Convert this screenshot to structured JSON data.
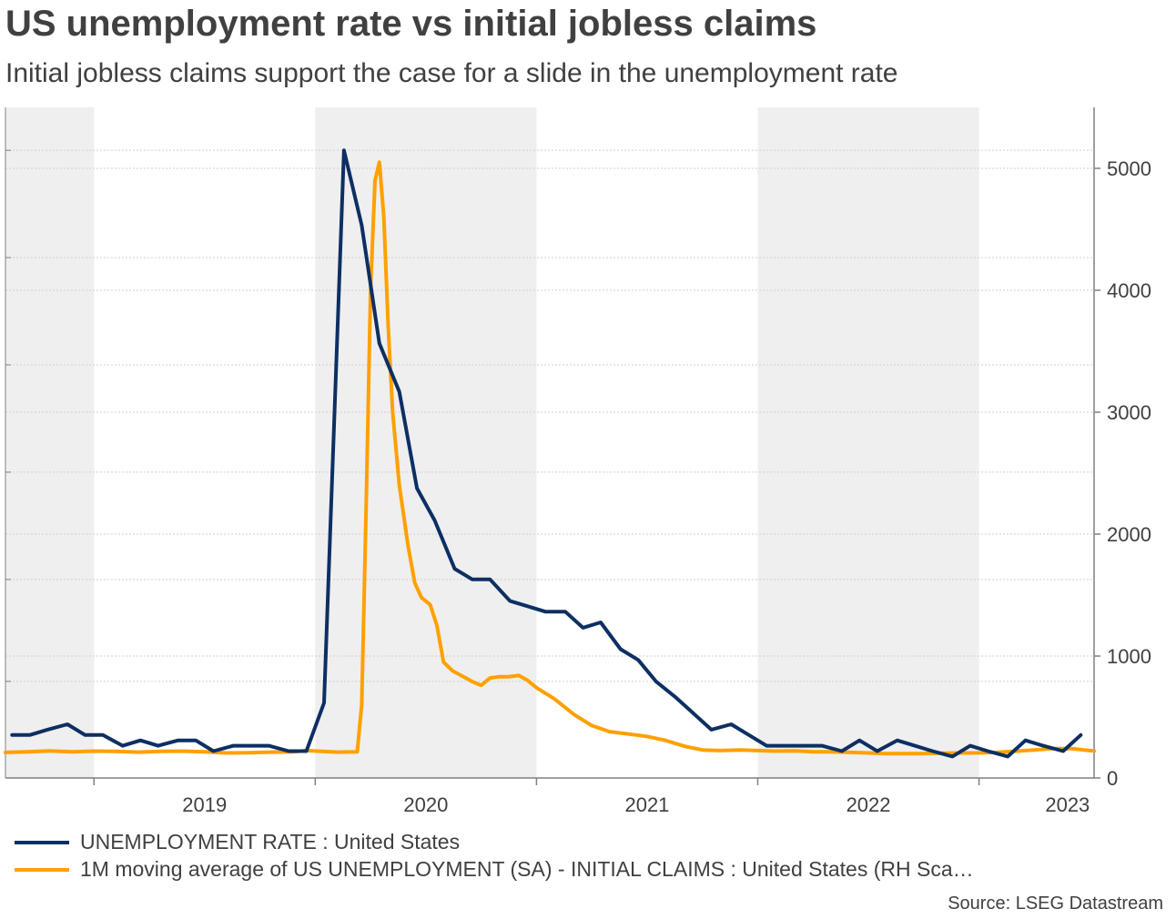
{
  "title": "US unemployment rate vs initial jobless claims",
  "subtitle": "Initial jobless claims support the case for a slide in the unemployment rate",
  "source": "Source: LSEG Datastream",
  "colors": {
    "unemployment": "#0d2f63",
    "claims": "#ffa000",
    "shade": "#efefef",
    "grid": "#cfcfcf",
    "axis": "#808080"
  },
  "chart_data": {
    "type": "line",
    "title": "US unemployment rate vs initial jobless claims",
    "xlabel": "",
    "ylabel_right": "",
    "x_range": [
      2018.6,
      2023.52
    ],
    "x_ticks": [
      {
        "label": "2019",
        "value": 2019.5
      },
      {
        "label": "2020",
        "value": 2020.5
      },
      {
        "label": "2021",
        "value": 2021.5
      },
      {
        "label": "2022",
        "value": 2022.5
      },
      {
        "label": "2023",
        "value": 2023.4
      }
    ],
    "year_boundaries": [
      2019,
      2020,
      2021,
      2022,
      2023
    ],
    "shaded_years": [
      [
        2018.6,
        2019
      ],
      [
        2020,
        2021
      ],
      [
        2022,
        2023
      ]
    ],
    "left_axis": {
      "ylim": [
        3.0,
        15.5
      ],
      "ticks": [],
      "grid": [
        4.8,
        6.7,
        8.7,
        10.7,
        12.7,
        14.7
      ]
    },
    "right_axis": {
      "ylim": [
        0,
        5500
      ],
      "ticks": [
        0,
        1000,
        2000,
        3000,
        4000,
        5000
      ],
      "tick_labels": [
        "0",
        "1000",
        "2000",
        "3000",
        "4000",
        "5000"
      ]
    },
    "series": [
      {
        "name": "UNEMPLOYMENT RATE : United States",
        "axis": "left",
        "values": [
          [
            2018.63,
            3.8
          ],
          [
            2018.71,
            3.8
          ],
          [
            2018.79,
            3.9
          ],
          [
            2018.88,
            4.0
          ],
          [
            2018.96,
            3.8
          ],
          [
            2019.04,
            3.8
          ],
          [
            2019.13,
            3.6
          ],
          [
            2019.21,
            3.7
          ],
          [
            2019.29,
            3.6
          ],
          [
            2019.38,
            3.7
          ],
          [
            2019.46,
            3.7
          ],
          [
            2019.54,
            3.5
          ],
          [
            2019.63,
            3.6
          ],
          [
            2019.71,
            3.6
          ],
          [
            2019.79,
            3.6
          ],
          [
            2019.88,
            3.5
          ],
          [
            2019.96,
            3.5
          ],
          [
            2020.04,
            4.4
          ],
          [
            2020.13,
            14.7
          ],
          [
            2020.21,
            13.3
          ],
          [
            2020.29,
            11.1
          ],
          [
            2020.38,
            10.2
          ],
          [
            2020.46,
            8.4
          ],
          [
            2020.54,
            7.8
          ],
          [
            2020.63,
            6.9
          ],
          [
            2020.71,
            6.7
          ],
          [
            2020.79,
            6.7
          ],
          [
            2020.88,
            6.3
          ],
          [
            2020.96,
            6.2
          ],
          [
            2021.04,
            6.1
          ],
          [
            2021.13,
            6.1
          ],
          [
            2021.21,
            5.8
          ],
          [
            2021.29,
            5.9
          ],
          [
            2021.38,
            5.4
          ],
          [
            2021.46,
            5.2
          ],
          [
            2021.54,
            4.8
          ],
          [
            2021.63,
            4.5
          ],
          [
            2021.71,
            4.2
          ],
          [
            2021.79,
            3.9
          ],
          [
            2021.88,
            4.0
          ],
          [
            2021.96,
            3.8
          ],
          [
            2022.04,
            3.6
          ],
          [
            2022.13,
            3.6
          ],
          [
            2022.21,
            3.6
          ],
          [
            2022.29,
            3.6
          ],
          [
            2022.38,
            3.5
          ],
          [
            2022.46,
            3.7
          ],
          [
            2022.54,
            3.5
          ],
          [
            2022.63,
            3.7
          ],
          [
            2022.71,
            3.6
          ],
          [
            2022.79,
            3.5
          ],
          [
            2022.88,
            3.4
          ],
          [
            2022.96,
            3.6
          ],
          [
            2023.04,
            3.5
          ],
          [
            2023.13,
            3.4
          ],
          [
            2023.21,
            3.7
          ],
          [
            2023.29,
            3.6
          ],
          [
            2023.38,
            3.5
          ],
          [
            2023.46,
            3.8
          ]
        ]
      },
      {
        "name": "1M moving average of US UNEMPLOYMENT (SA) - INITIAL CLAIMS : United States (RH Sca…",
        "axis": "right",
        "values": [
          [
            2018.6,
            210
          ],
          [
            2018.7,
            215
          ],
          [
            2018.8,
            222
          ],
          [
            2018.9,
            215
          ],
          [
            2019.0,
            220
          ],
          [
            2019.1,
            218
          ],
          [
            2019.2,
            212
          ],
          [
            2019.3,
            218
          ],
          [
            2019.4,
            220
          ],
          [
            2019.5,
            215
          ],
          [
            2019.6,
            205
          ],
          [
            2019.7,
            207
          ],
          [
            2019.8,
            212
          ],
          [
            2019.9,
            215
          ],
          [
            2019.96,
            225
          ],
          [
            2020.1,
            212
          ],
          [
            2020.19,
            215
          ],
          [
            2020.21,
            600
          ],
          [
            2020.23,
            2200
          ],
          [
            2020.25,
            4000
          ],
          [
            2020.27,
            4900
          ],
          [
            2020.29,
            5050
          ],
          [
            2020.31,
            4600
          ],
          [
            2020.33,
            3700
          ],
          [
            2020.35,
            3000
          ],
          [
            2020.38,
            2400
          ],
          [
            2020.42,
            1900
          ],
          [
            2020.45,
            1600
          ],
          [
            2020.48,
            1480
          ],
          [
            2020.52,
            1420
          ],
          [
            2020.55,
            1250
          ],
          [
            2020.58,
            950
          ],
          [
            2020.62,
            880
          ],
          [
            2020.67,
            830
          ],
          [
            2020.71,
            790
          ],
          [
            2020.75,
            760
          ],
          [
            2020.79,
            820
          ],
          [
            2020.83,
            830
          ],
          [
            2020.87,
            830
          ],
          [
            2020.92,
            840
          ],
          [
            2020.96,
            800
          ],
          [
            2021.0,
            740
          ],
          [
            2021.08,
            650
          ],
          [
            2021.17,
            520
          ],
          [
            2021.25,
            430
          ],
          [
            2021.33,
            380
          ],
          [
            2021.42,
            360
          ],
          [
            2021.5,
            340
          ],
          [
            2021.58,
            310
          ],
          [
            2021.67,
            260
          ],
          [
            2021.75,
            230
          ],
          [
            2021.83,
            225
          ],
          [
            2021.92,
            230
          ],
          [
            2022.0,
            225
          ],
          [
            2022.08,
            220
          ],
          [
            2022.17,
            222
          ],
          [
            2022.25,
            215
          ],
          [
            2022.33,
            215
          ],
          [
            2022.42,
            210
          ],
          [
            2022.5,
            205
          ],
          [
            2022.58,
            200
          ],
          [
            2022.67,
            200
          ],
          [
            2022.75,
            200
          ],
          [
            2022.83,
            203
          ],
          [
            2022.92,
            205
          ],
          [
            2023.0,
            205
          ],
          [
            2023.08,
            210
          ],
          [
            2023.17,
            220
          ],
          [
            2023.25,
            230
          ],
          [
            2023.33,
            240
          ],
          [
            2023.42,
            240
          ],
          [
            2023.5,
            225
          ],
          [
            2023.52,
            222
          ]
        ]
      }
    ]
  },
  "legend": [
    {
      "label": "UNEMPLOYMENT RATE : United States",
      "color": "#0d2f63"
    },
    {
      "label": "1M moving average of US UNEMPLOYMENT (SA) - INITIAL CLAIMS : United States (RH Sca…",
      "color": "#ffa000"
    }
  ]
}
